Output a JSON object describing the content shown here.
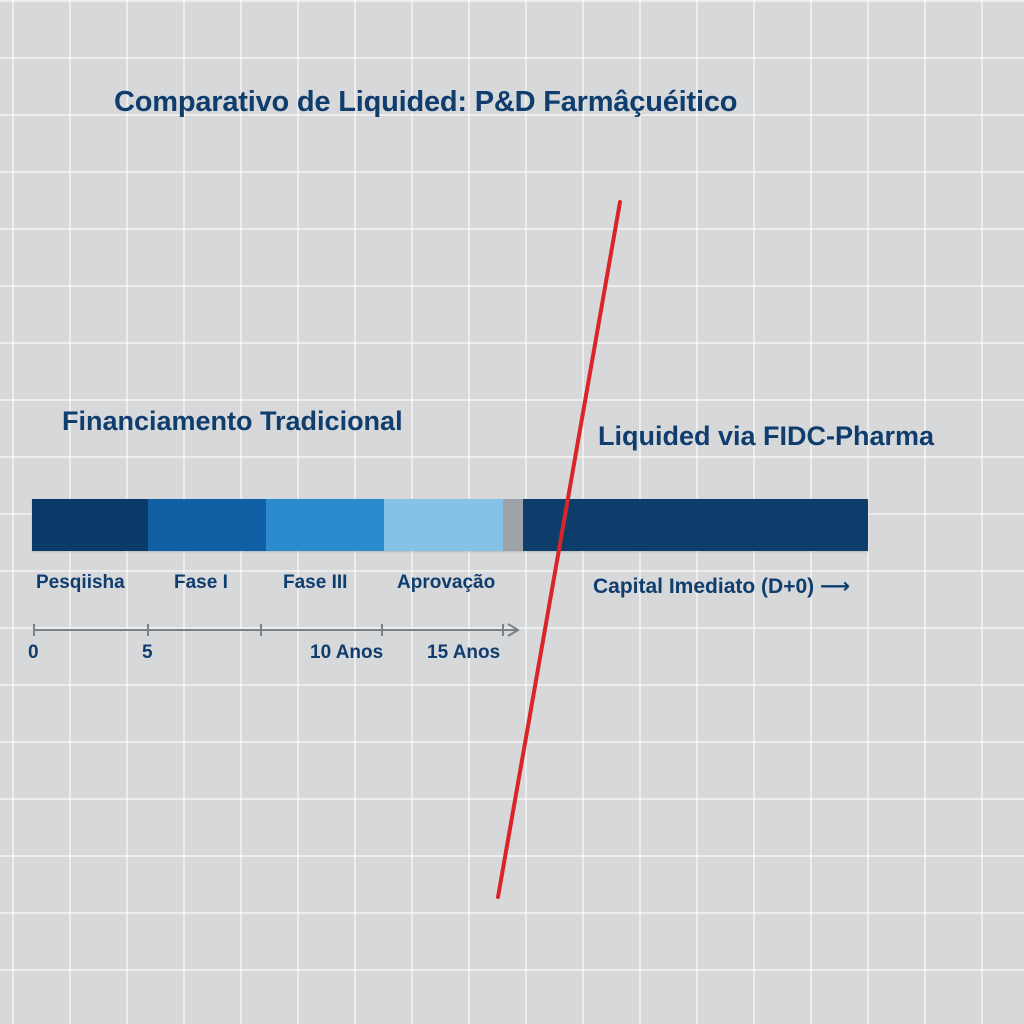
{
  "title": "Comparativo de Liquided: P&D Farmâçuéitico",
  "left_heading": "Financiamento Tradicional",
  "right_heading": "Liquided via FIDC-Pharma",
  "phases": [
    {
      "label": "Pesqiisha",
      "color": "#0c3b6a"
    },
    {
      "label": "Fase I",
      "color": "#1160a5"
    },
    {
      "label": "Fase III",
      "color": "#2b8bcc"
    },
    {
      "label": "Aprovação",
      "color": "#86c1e8"
    },
    {
      "label": "",
      "color": "#9ea3a9"
    },
    {
      "label": "",
      "color": "#0d3d6b"
    }
  ],
  "capital_label": "Capital Imediato (D+0)",
  "capital_arrow": "⟶",
  "timeline_ticks": [
    {
      "label": "0"
    },
    {
      "label": "5"
    },
    {
      "label": ""
    },
    {
      "label": "10 Anos"
    },
    {
      "label": "15 Anos"
    }
  ],
  "colors": {
    "text": "#0f3d6e",
    "axis": "#7c8186",
    "divider": "#d9252a"
  }
}
